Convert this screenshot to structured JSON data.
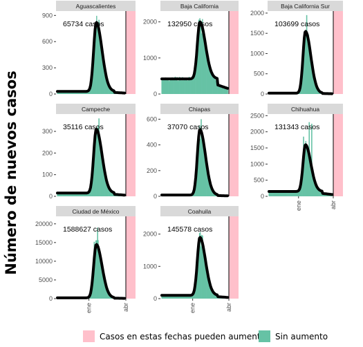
{
  "y_axis_label": "Número de nuevos casos",
  "colors": {
    "bars": "#66c2a5",
    "smooth": "#000000",
    "pending": "#ffc0cb",
    "strip": "#d9d9d9",
    "axis": "#333333"
  },
  "legend": {
    "items": [
      {
        "label": "Casos en estas fechas pueden aumentar",
        "color": "#ffc0cb"
      },
      {
        "label": "Sin aumento",
        "color": "#66c2a5"
      }
    ]
  },
  "chart_data": {
    "type": "bar",
    "x_tick_labels": [
      "ene",
      "abr"
    ],
    "panels": [
      {
        "state": "Aguascalientes",
        "total_label": "65734 casos",
        "ylim": [
          0,
          950
        ],
        "yticks": [
          "0",
          "300",
          "600",
          "900"
        ],
        "peak": 820,
        "tail": 30,
        "spikes": [
          [
            0.62,
            850
          ]
        ],
        "show_x": false
      },
      {
        "state": "Baja California",
        "total_label": "132950 casos",
        "ylim": [
          0,
          2300
        ],
        "yticks": [
          "0",
          "1000",
          "2000"
        ],
        "peak": 2000,
        "tail": 420,
        "spikes": [
          [
            0.58,
            2100
          ]
        ],
        "show_x": false
      },
      {
        "state": "Baja California Sur",
        "total_label": "103699 casos",
        "ylim": [
          0,
          2050
        ],
        "yticks": [
          "0",
          "500",
          "1000",
          "1500",
          "2000"
        ],
        "peak": 1550,
        "tail": 20,
        "spikes": [
          [
            0.6,
            1950
          ]
        ],
        "show_x": false
      },
      {
        "state": "Campeche",
        "total_label": "35116 casos",
        "ylim": [
          0,
          380
        ],
        "yticks": [
          "0",
          "100",
          "200",
          "300"
        ],
        "peak": 310,
        "tail": 15,
        "spikes": [
          [
            0.62,
            360
          ]
        ],
        "show_x": false
      },
      {
        "state": "Chiapas",
        "total_label": "37070 casos",
        "ylim": [
          0,
          640
        ],
        "yticks": [
          "0",
          "200",
          "400",
          "600"
        ],
        "peak": 520,
        "tail": 10,
        "spikes": [
          [
            0.6,
            600
          ]
        ],
        "show_x": false
      },
      {
        "state": "Chihuahua",
        "total_label": "131343 casos",
        "ylim": [
          0,
          2550
        ],
        "yticks": [
          "0",
          "500",
          "1000",
          "1500",
          "2000",
          "2500"
        ],
        "peak": 1600,
        "tail": 150,
        "spikes": [
          [
            0.55,
            1850
          ],
          [
            0.64,
            2300
          ],
          [
            0.68,
            2250
          ]
        ],
        "show_x": true
      },
      {
        "state": "Ciudad de México",
        "total_label": "1588627 casos",
        "ylim": [
          0,
          22000
        ],
        "yticks": [
          "0",
          "5000",
          "10000",
          "15000",
          "20000"
        ],
        "peak": 14500,
        "tail": 200,
        "spikes": [
          [
            0.55,
            15200
          ],
          [
            0.6,
            19000
          ]
        ],
        "show_x": true
      },
      {
        "state": "Coahuila",
        "total_label": "145578 casos",
        "ylim": [
          0,
          2550
        ],
        "yticks": [
          "0",
          "1000",
          "2000"
        ],
        "peak": 1900,
        "tail": 100,
        "spikes": [
          [
            0.62,
            1950
          ]
        ],
        "show_x": true
      }
    ]
  }
}
